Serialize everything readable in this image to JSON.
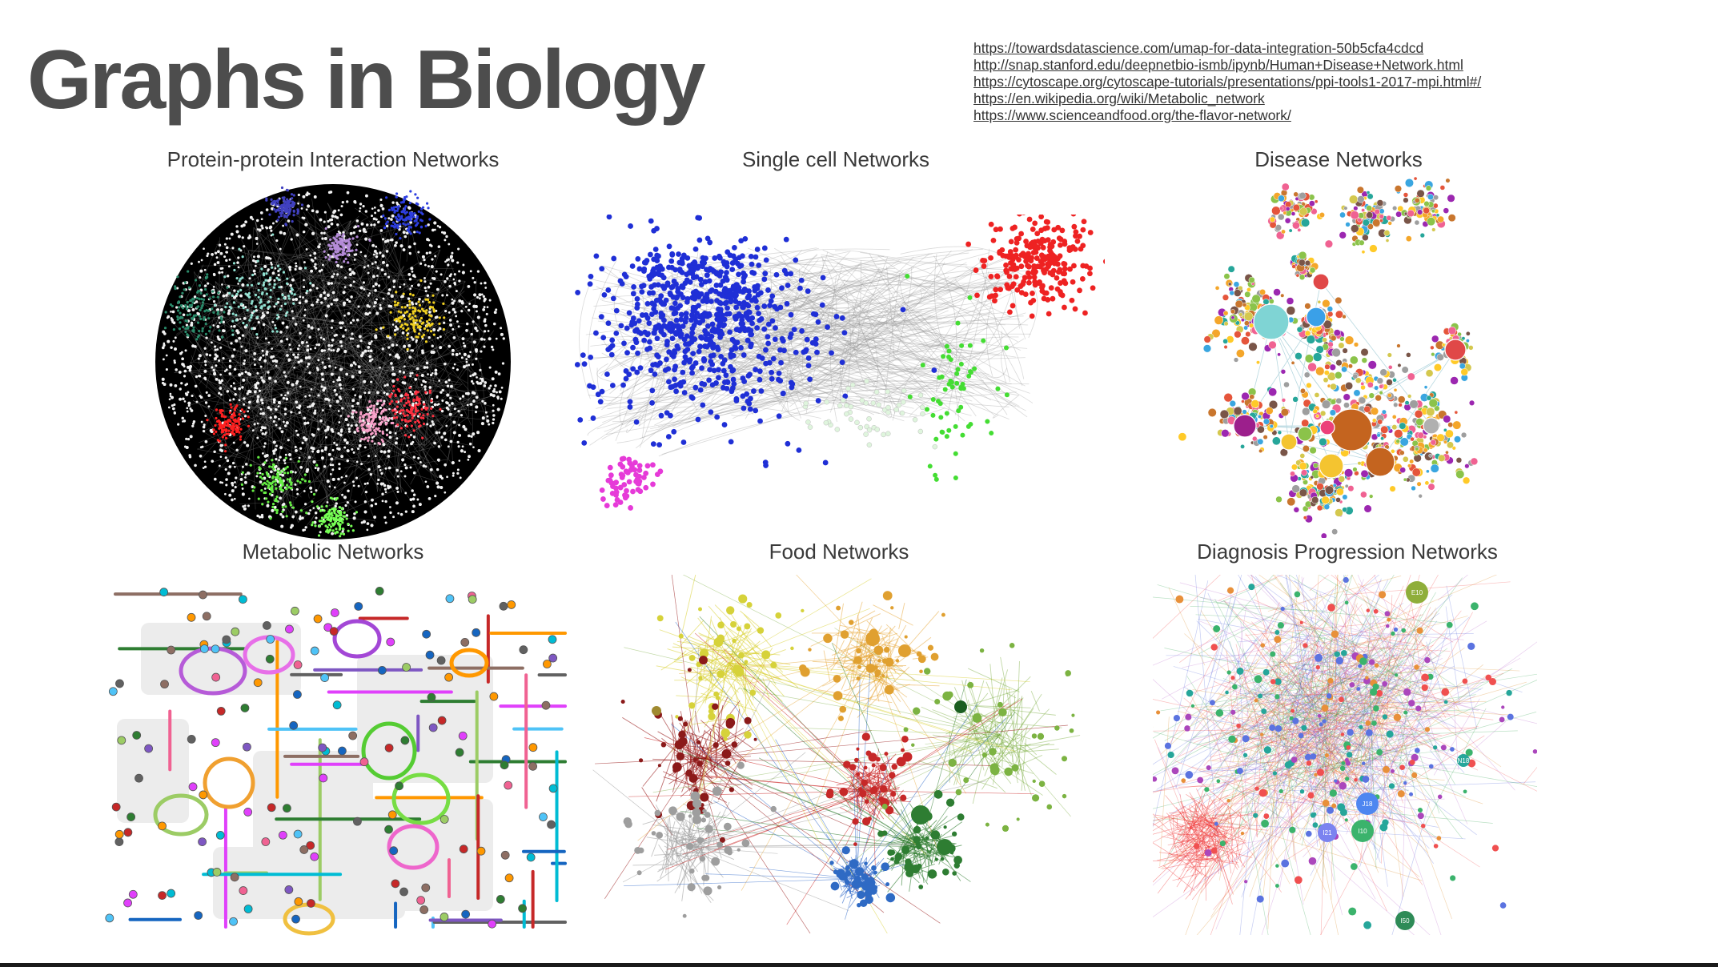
{
  "slide": {
    "title": "Graphs in Biology",
    "sources": [
      "https://towardsdatascience.com/umap-for-data-integration-50b5cfa4cdcd",
      "http://snap.stanford.edu/deepnetbio-ismb/ipynb/Human+Disease+Network.html",
      "https://cytoscape.org/cytoscape-tutorials/presentations/ppi-tools1-2017-mpi.html#/",
      "https://en.wikipedia.org/wiki/Metabolic_network",
      "https://www.scienceandfood.org/the-flavor-network/"
    ]
  },
  "panels": {
    "ppi": {
      "title": "Protein-protein Interaction Networks"
    },
    "single_cell": {
      "title": "Single cell Networks"
    },
    "disease": {
      "title": "Disease Networks"
    },
    "metabolic": {
      "title": "Metabolic Networks"
    },
    "food": {
      "title": "Food Networks"
    },
    "diagnosis": {
      "title": "Diagnosis Progression Networks",
      "node_labels": [
        "E10",
        "J18",
        "I21",
        "I10",
        "N18",
        "I50"
      ]
    }
  },
  "colors": {
    "title": "#4d4d4d",
    "ppi_background": "#000000",
    "sc_blue": "#1f2fd6",
    "sc_red": "#ee2222",
    "sc_magenta": "#e63ad8",
    "sc_green": "#44dd33"
  }
}
